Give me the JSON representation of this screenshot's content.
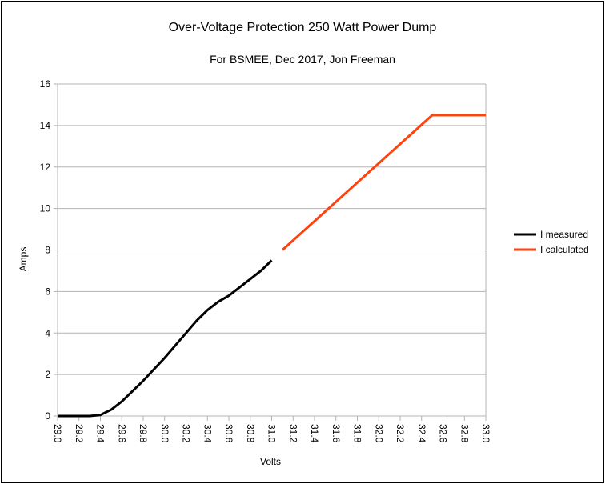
{
  "chart_data": {
    "type": "line",
    "title": "Over-Voltage Protection 250 Watt Power Dump",
    "subtitle": "For BSMEE, Dec 2017, Jon Freeman",
    "xlabel": "Volts",
    "ylabel": "Amps",
    "xlim": [
      29.0,
      33.0
    ],
    "ylim": [
      0,
      16
    ],
    "x_ticks": [
      "29.0",
      "29.2",
      "29.4",
      "29.6",
      "29.8",
      "30.0",
      "30.2",
      "30.4",
      "30.6",
      "30.8",
      "31.0",
      "31.2",
      "31.4",
      "31.6",
      "31.8",
      "32.0",
      "32.2",
      "32.4",
      "32.6",
      "32.8",
      "33.0"
    ],
    "y_ticks": [
      "0",
      "2",
      "4",
      "6",
      "8",
      "10",
      "12",
      "14",
      "16"
    ],
    "grid": "horizontal",
    "legend_position": "right",
    "series": [
      {
        "name": "I measured",
        "color": "#000000",
        "points": [
          [
            29.0,
            0.0
          ],
          [
            29.1,
            0.0
          ],
          [
            29.2,
            0.0
          ],
          [
            29.3,
            0.0
          ],
          [
            29.4,
            0.05
          ],
          [
            29.5,
            0.3
          ],
          [
            29.6,
            0.7
          ],
          [
            29.7,
            1.2
          ],
          [
            29.8,
            1.7
          ],
          [
            29.9,
            2.25
          ],
          [
            30.0,
            2.8
          ],
          [
            30.1,
            3.4
          ],
          [
            30.2,
            4.0
          ],
          [
            30.3,
            4.6
          ],
          [
            30.4,
            5.1
          ],
          [
            30.5,
            5.5
          ],
          [
            30.6,
            5.8
          ],
          [
            30.7,
            6.2
          ],
          [
            30.8,
            6.6
          ],
          [
            30.9,
            7.0
          ],
          [
            31.0,
            7.5
          ]
        ]
      },
      {
        "name": "I calculated",
        "color": "#ff420e",
        "points": [
          [
            31.1,
            8.0
          ],
          [
            32.5,
            14.5
          ],
          [
            33.0,
            14.5
          ]
        ]
      }
    ]
  }
}
